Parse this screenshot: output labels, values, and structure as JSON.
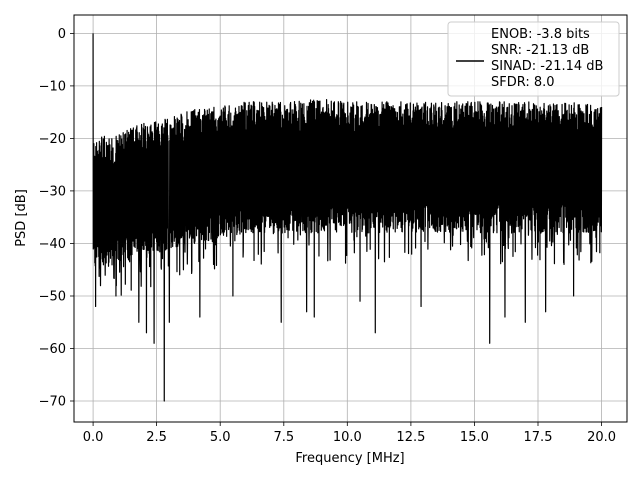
{
  "chart_data": {
    "type": "line",
    "title": "",
    "xlabel": "Frequency [MHz]",
    "ylabel": "PSD [dB]",
    "xlim": [
      -0.75,
      21.0
    ],
    "ylim": [
      -74,
      3.5
    ],
    "xticks": [
      0.0,
      2.5,
      5.0,
      7.5,
      10.0,
      12.5,
      15.0,
      17.5,
      20.0
    ],
    "xtick_labels": [
      "0.0",
      "2.5",
      "5.0",
      "7.5",
      "10.0",
      "12.5",
      "15.0",
      "17.5",
      "20.0"
    ],
    "yticks": [
      0,
      -10,
      -20,
      -30,
      -40,
      -50,
      -60,
      -70
    ],
    "ytick_labels": [
      "0",
      "−10",
      "−20",
      "−30",
      "−40",
      "−50",
      "−60",
      "−70"
    ],
    "grid": true,
    "legend_position": "top-right",
    "legend_lines": [
      "ENOB: -3.8 bits",
      "SNR: -21.13 dB",
      "SINAD: -21.14 dB",
      "SFDR: 8.0"
    ],
    "series": [
      {
        "color": "#000000",
        "x_range": [
          0.0,
          20.0
        ],
        "peak": {
          "x": 0.0,
          "y": 0.0
        },
        "envelope_x": [
          0.0,
          1.0,
          2.0,
          3.0,
          4.0,
          5.0,
          6.0,
          7.0,
          8.0,
          9.0,
          10.0,
          11.0,
          12.0,
          13.0,
          14.0,
          15.0,
          16.0,
          17.0,
          18.0,
          19.0,
          20.0
        ],
        "upper_y": [
          -20,
          -19,
          -17,
          -16,
          -14,
          -14,
          -13,
          -13,
          -13,
          -12,
          -13,
          -13,
          -13,
          -13,
          -13,
          -13,
          -13,
          -13,
          -13,
          -13,
          -14
        ],
        "lower_y": [
          -45,
          -44,
          -43,
          -41,
          -40,
          -39,
          -38,
          -38,
          -38,
          -38,
          -38,
          -38,
          -38,
          -38,
          -38,
          -38,
          -38,
          -38,
          -38,
          -38,
          -38
        ],
        "deep_dips": [
          {
            "x": 0.1,
            "y": -52
          },
          {
            "x": 0.9,
            "y": -50
          },
          {
            "x": 1.8,
            "y": -55
          },
          {
            "x": 2.1,
            "y": -57
          },
          {
            "x": 2.4,
            "y": -59
          },
          {
            "x": 2.8,
            "y": -70
          },
          {
            "x": 3.0,
            "y": -55
          },
          {
            "x": 4.2,
            "y": -54
          },
          {
            "x": 5.5,
            "y": -50
          },
          {
            "x": 7.4,
            "y": -55
          },
          {
            "x": 8.4,
            "y": -53
          },
          {
            "x": 8.7,
            "y": -54
          },
          {
            "x": 10.5,
            "y": -51
          },
          {
            "x": 11.1,
            "y": -57
          },
          {
            "x": 12.9,
            "y": -52
          },
          {
            "x": 15.6,
            "y": -59
          },
          {
            "x": 16.2,
            "y": -54
          },
          {
            "x": 17.0,
            "y": -55
          },
          {
            "x": 17.8,
            "y": -53
          },
          {
            "x": 18.9,
            "y": -50
          }
        ]
      }
    ]
  }
}
